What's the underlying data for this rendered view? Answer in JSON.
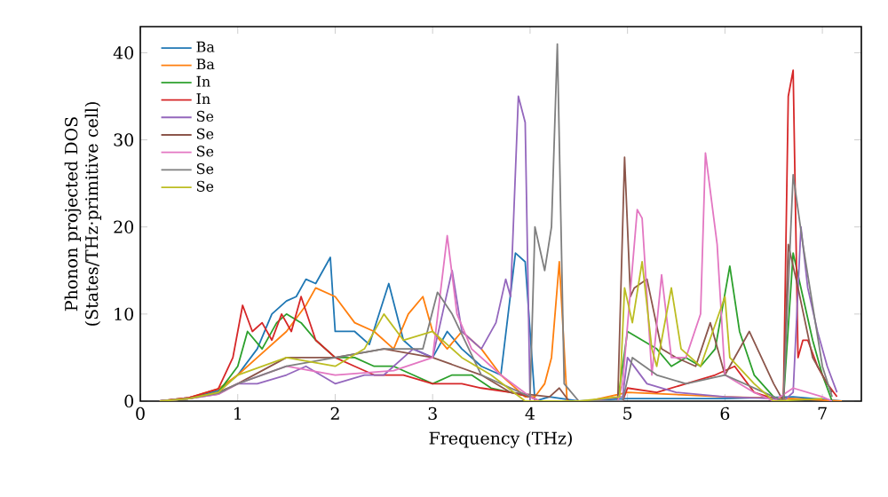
{
  "chart_data": {
    "type": "line",
    "xlabel": "Frequency (THz)",
    "ylabel": "Phonon projected DOS (States/THz·primitive cell)",
    "xlim": [
      0,
      7.4
    ],
    "ylim": [
      0,
      43
    ],
    "xticks": [
      0,
      1,
      2,
      3,
      4,
      5,
      6,
      7
    ],
    "yticks": [
      0,
      10,
      20,
      30,
      40
    ],
    "legend": "top left",
    "grid": false,
    "marker": "none",
    "line_style": "solid",
    "series": [
      {
        "name": "Ba",
        "color": "#1f77b4",
        "x": [
          0.2,
          0.5,
          0.8,
          1.0,
          1.2,
          1.35,
          1.5,
          1.6,
          1.7,
          1.8,
          1.95,
          2.0,
          2.2,
          2.35,
          2.55,
          2.7,
          2.8,
          3.0,
          3.15,
          3.3,
          3.5,
          3.7,
          3.85,
          3.95,
          4.05,
          4.2,
          4.5,
          5.0,
          6.0,
          6.7,
          7.2
        ],
        "values": [
          0,
          0.4,
          1.2,
          3,
          6,
          10,
          11.5,
          12,
          14,
          13.5,
          16.5,
          8,
          8,
          6.5,
          13.5,
          7,
          6,
          5,
          8,
          6,
          4,
          3,
          17,
          16,
          0,
          0.5,
          0,
          0.3,
          0.3,
          0.5,
          0
        ]
      },
      {
        "name": "Ba",
        "color": "#ff7f0e",
        "x": [
          0.2,
          0.5,
          0.8,
          1.0,
          1.2,
          1.5,
          1.7,
          1.8,
          2.0,
          2.2,
          2.4,
          2.6,
          2.75,
          2.9,
          3.0,
          3.15,
          3.3,
          3.5,
          3.7,
          3.8,
          3.95,
          4.05,
          4.15,
          4.22,
          4.3,
          4.38,
          4.6,
          5.0,
          6.0,
          6.7,
          7.2
        ],
        "values": [
          0,
          0.4,
          1.4,
          3,
          5,
          8,
          11,
          13,
          12,
          9,
          8,
          6,
          10,
          12,
          8,
          6,
          8,
          6,
          3,
          2,
          0.5,
          0.5,
          2,
          5,
          16,
          0,
          0,
          1,
          0.5,
          0.3,
          0
        ]
      },
      {
        "name": "In",
        "color": "#2ca02c",
        "x": [
          0.2,
          0.5,
          0.8,
          1.0,
          1.1,
          1.25,
          1.4,
          1.5,
          1.65,
          1.8,
          2.0,
          2.2,
          2.4,
          2.6,
          2.8,
          3.0,
          3.2,
          3.4,
          3.6,
          3.8,
          4.0,
          4.1,
          4.6,
          4.9,
          5.0,
          5.15,
          5.3,
          5.45,
          5.6,
          5.75,
          5.9,
          6.05,
          6.15,
          6.3,
          6.5,
          6.6,
          6.7,
          6.8,
          6.9,
          7.0,
          7.1
        ],
        "values": [
          0,
          0.3,
          1,
          4,
          8,
          6,
          9,
          10,
          9,
          7,
          5,
          5,
          4,
          4,
          3,
          2,
          3,
          3,
          1.5,
          1,
          0.5,
          0,
          0,
          0,
          8,
          7,
          6,
          4,
          5,
          4,
          6,
          15.5,
          8,
          3,
          0.5,
          0,
          17,
          12,
          7,
          3,
          0
        ]
      },
      {
        "name": "In",
        "color": "#d62728",
        "x": [
          0.2,
          0.5,
          0.8,
          0.95,
          1.05,
          1.15,
          1.25,
          1.35,
          1.45,
          1.55,
          1.65,
          1.8,
          2.0,
          2.2,
          2.4,
          2.7,
          3.0,
          3.3,
          3.5,
          3.8,
          4.0,
          4.1,
          4.6,
          4.95,
          5.0,
          5.3,
          5.6,
          5.9,
          6.1,
          6.3,
          6.5,
          6.6,
          6.65,
          6.7,
          6.75,
          6.8,
          6.85,
          6.95,
          7.05,
          7.15
        ],
        "values": [
          0,
          0.4,
          1.4,
          5,
          11,
          8,
          9,
          7,
          10,
          8,
          12,
          7,
          5,
          4,
          3,
          3,
          2,
          2,
          1.5,
          1,
          0.5,
          0,
          0,
          0,
          1.5,
          1,
          2,
          3,
          4,
          1,
          0.3,
          0,
          35,
          38,
          5,
          7,
          7,
          4,
          2,
          0.5
        ]
      },
      {
        "name": "Se",
        "color": "#9467bd",
        "x": [
          0.2,
          0.5,
          0.8,
          1.0,
          1.2,
          1.5,
          1.7,
          2.0,
          2.3,
          2.5,
          2.8,
          3.0,
          3.1,
          3.2,
          3.3,
          3.5,
          3.65,
          3.75,
          3.8,
          3.88,
          3.95,
          4.0,
          4.1,
          4.6,
          4.95,
          5.0,
          5.2,
          5.5,
          6.0,
          6.5,
          6.6,
          6.7,
          6.78,
          6.85,
          6.95,
          7.05,
          7.15
        ],
        "values": [
          0,
          0.3,
          0.8,
          2,
          2,
          3,
          4,
          2,
          3,
          3,
          6,
          5,
          10,
          15,
          8,
          6,
          9,
          14,
          12,
          35,
          32,
          0,
          0,
          0,
          0.5,
          5,
          2,
          1,
          0.5,
          0.3,
          0,
          1,
          20,
          13,
          8,
          4,
          1
        ]
      },
      {
        "name": "Se",
        "color": "#8c564b",
        "x": [
          0.2,
          0.5,
          0.8,
          1.0,
          1.5,
          2.0,
          2.5,
          3.0,
          3.5,
          3.8,
          4.2,
          4.3,
          4.4,
          4.9,
          4.97,
          5.03,
          5.07,
          5.2,
          5.35,
          5.5,
          5.7,
          5.85,
          6.0,
          6.25,
          6.5,
          6.6,
          6.65,
          6.75,
          6.9,
          7.1
        ],
        "values": [
          0,
          0.3,
          1,
          2,
          5,
          5,
          6,
          5,
          3,
          1,
          0.5,
          1.5,
          0,
          0,
          28,
          12,
          13,
          14,
          6,
          5,
          4,
          9,
          3,
          8,
          2,
          0,
          18,
          13,
          5,
          1
        ]
      },
      {
        "name": "Se",
        "color": "#e377c2",
        "x": [
          0.2,
          0.5,
          0.8,
          1.0,
          1.5,
          2.0,
          2.6,
          3.0,
          3.15,
          3.25,
          3.4,
          3.7,
          4.0,
          4.1,
          4.9,
          4.95,
          5.1,
          5.15,
          5.25,
          5.35,
          5.45,
          5.6,
          5.75,
          5.8,
          5.92,
          6.0,
          6.3,
          6.5,
          6.7,
          7.0,
          7.1
        ],
        "values": [
          0,
          0.3,
          0.8,
          2,
          4,
          3,
          3.5,
          5,
          19,
          10,
          6,
          3,
          0.5,
          0,
          0,
          2,
          22,
          21,
          3,
          14.5,
          5,
          5,
          10,
          28.5,
          18,
          3,
          1,
          0,
          1.5,
          0.5,
          0
        ]
      },
      {
        "name": "Se",
        "color": "#7f7f7f",
        "x": [
          0.2,
          0.5,
          0.8,
          1.0,
          1.5,
          2.0,
          2.5,
          2.9,
          3.05,
          3.2,
          3.5,
          3.9,
          4.0,
          4.05,
          4.15,
          4.22,
          4.28,
          4.35,
          4.5,
          4.95,
          5.05,
          5.3,
          5.6,
          6.0,
          6.4,
          6.6,
          6.7,
          6.8,
          7.0,
          7.1
        ],
        "values": [
          0,
          0.3,
          0.9,
          2,
          4,
          5,
          6,
          6,
          12.5,
          10,
          3,
          1,
          0.5,
          20,
          15,
          20,
          41,
          2,
          0,
          0,
          5,
          3,
          2,
          3,
          1,
          0,
          26,
          18,
          4,
          0.5
        ]
      },
      {
        "name": "Se",
        "color": "#bcbd22",
        "x": [
          0.2,
          0.5,
          0.8,
          1.0,
          1.5,
          2.0,
          2.3,
          2.5,
          2.7,
          3.0,
          3.3,
          3.6,
          3.95,
          4.5,
          4.92,
          4.97,
          5.05,
          5.15,
          5.25,
          5.3,
          5.45,
          5.55,
          5.75,
          6.0,
          6.05,
          6.3,
          6.5,
          7.0
        ],
        "values": [
          0,
          0.3,
          1,
          3,
          5,
          4,
          6,
          10,
          7,
          8,
          5,
          3,
          0,
          0,
          0.5,
          13,
          9,
          16,
          6,
          4,
          13,
          6,
          4,
          12,
          5,
          2,
          0,
          0.3
        ]
      }
    ]
  }
}
